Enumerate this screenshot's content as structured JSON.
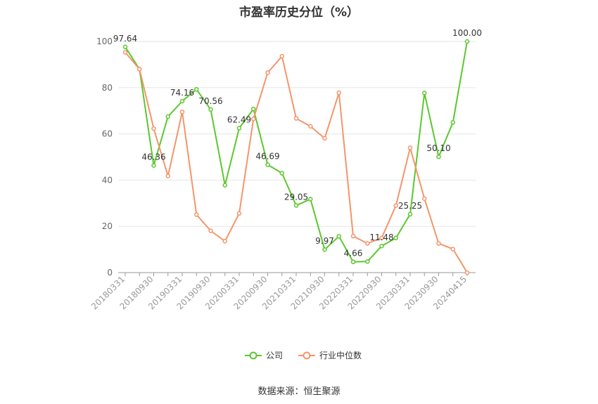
{
  "chart_data": {
    "type": "line",
    "title": "市盈率历史分位（%）",
    "source": "数据来源：恒生聚源",
    "xlabel": "",
    "ylabel": "",
    "ylim": [
      0,
      100
    ],
    "yticks": [
      0,
      20,
      40,
      60,
      80,
      100
    ],
    "grid": true,
    "legend_position": "bottom",
    "x_tick_labels": [
      "20180331",
      "20180930",
      "20190331",
      "20190930",
      "20200331",
      "20200930",
      "20210331",
      "20210930",
      "20220331",
      "20220930",
      "20230331",
      "20230930",
      "20240415"
    ],
    "x": [
      "20180331",
      "20180630",
      "20180930",
      "20181231",
      "20190331",
      "20190630",
      "20190930",
      "20191231",
      "20200331",
      "20200630",
      "20200930",
      "20201231",
      "20210331",
      "20210630",
      "20210930",
      "20211231",
      "20220331",
      "20220630",
      "20220930",
      "20221231",
      "20230331",
      "20230630",
      "20230930",
      "20231231",
      "20240415"
    ],
    "series": [
      {
        "name": "公司",
        "color": "#5cc72e",
        "values": [
          97.64,
          88.0,
          46.36,
          67.5,
          74.16,
          79.3,
          70.56,
          37.8,
          62.49,
          70.8,
          46.69,
          43.0,
          29.05,
          31.8,
          9.97,
          15.7,
          4.66,
          4.8,
          11.48,
          15.0,
          25.25,
          77.7,
          50.1,
          65.0,
          100.0
        ],
        "labels": {
          "0": "97.64",
          "2": "46.36",
          "4": "74.16",
          "6": "70.56",
          "8": "62.49",
          "10": "46.69",
          "12": "29.05",
          "14": "9.97",
          "16": "4.66",
          "18": "11.48",
          "20": "25.25",
          "22": "50.10",
          "24": "100.00"
        }
      },
      {
        "name": "行业中位数",
        "color": "#f4956a",
        "values": [
          95.3,
          88.0,
          62.3,
          41.8,
          69.5,
          25.1,
          18.1,
          13.6,
          25.6,
          66.5,
          86.5,
          93.6,
          66.7,
          63.3,
          58.1,
          77.8,
          15.8,
          12.6,
          15.0,
          29.0,
          54.0,
          32.0,
          12.6,
          10.2,
          0.0
        ]
      }
    ]
  }
}
